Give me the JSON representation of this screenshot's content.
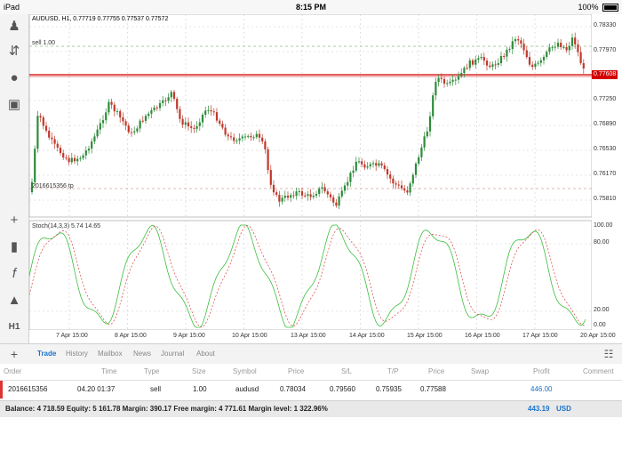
{
  "status_bar": {
    "device": "iPad",
    "time": "8:15 PM",
    "battery": "100%"
  },
  "chart": {
    "header": "AUDUSD, H1, 0.77719 0.77755 0.77537 0.77572",
    "sell_label": "sell 1.00",
    "tp_label": "2016615356 tp",
    "current_price": "0.77608",
    "price_ticks": [
      "0.78330",
      "0.77970",
      "0.77250",
      "0.76890",
      "0.76530",
      "0.76170",
      "0.75810"
    ],
    "stoch_header": "Stoch(14,3,3) 5.74 14.65",
    "stoch_ticks": [
      "100.00",
      "80.00",
      "20.00",
      "0.00"
    ],
    "date_ticks": [
      "7 Apr 15:00",
      "8 Apr 15:00",
      "9 Apr 15:00",
      "10 Apr 15:00",
      "13 Apr 15:00",
      "14 Apr 15:00",
      "15 Apr 15:00",
      "16 Apr 15:00",
      "17 Apr 15:00",
      "20 Apr 15:00"
    ],
    "colors": {
      "bull": "#2e8b3a",
      "bear": "#c0392b",
      "price_line": "#d40000",
      "stoch_main": "#3bbf3b",
      "stoch_signal": "#d94040"
    }
  },
  "toolbar_icons": [
    "account-icon",
    "up-down-arrows-icon",
    "chat-icon",
    "document-icon",
    "crosshair-icon",
    "candles-icon",
    "function-icon",
    "objects-icon",
    "timeframe-icon"
  ],
  "timeframe_label": "H1",
  "tabs": [
    "Trade",
    "History",
    "Mailbox",
    "News",
    "Journal",
    "About"
  ],
  "columns": [
    "Order",
    "Time",
    "Type",
    "Size",
    "Symbol",
    "Price",
    "S/L",
    "T/P",
    "Price",
    "Swap",
    "Profit",
    "Comment"
  ],
  "rows": [
    {
      "order": "2016615356",
      "time": "04.20 01:37",
      "type": "sell",
      "size": "1.00",
      "symbol": "audusd",
      "price": "0.78034",
      "sl": "0.79560",
      "tp": "0.75935",
      "cur_price": "0.77588",
      "swap": "",
      "profit": "446.00",
      "comment": ""
    }
  ],
  "balance": {
    "text": "Balance: 4 718.59 Equity: 5 161.78 Margin: 390.17 Free margin: 4 771.61 Margin level: 1 322.96%",
    "profit": "443.19",
    "currency": "USD"
  }
}
